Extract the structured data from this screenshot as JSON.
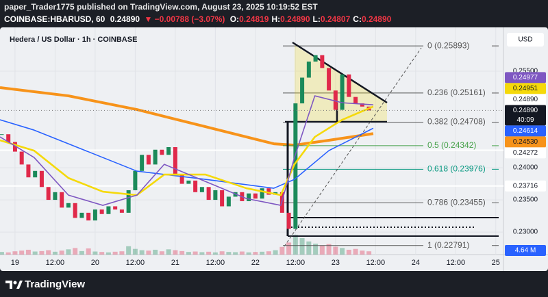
{
  "header": {
    "line1": "paper_Trader1775 published on TradingView.com, August 23, 2025 10:19:52 EST",
    "symbol": "COINBASE:HBARUSD, 60",
    "last": "0.24890",
    "change": "▼ −0.00788 (−3.07%)",
    "ohlc": [
      {
        "label": "O:",
        "value": "0.24819"
      },
      {
        "label": "H:",
        "value": "0.24890"
      },
      {
        "label": "L:",
        "value": "0.24807"
      },
      {
        "label": "C:",
        "value": "0.24890"
      }
    ]
  },
  "footer": {
    "brand": "TradingView"
  },
  "chart_data": {
    "type": "candlestick",
    "title": "Hedera / US Dollar · 1h · COINBASE",
    "currency": "USD",
    "up_color": "#1b8a5a",
    "down_color": "#e0294a",
    "grid": true,
    "x": [
      -4,
      -2,
      0,
      2,
      4,
      6,
      8,
      10,
      12,
      14,
      16,
      18,
      20,
      22,
      24,
      26,
      28,
      30,
      32,
      34,
      36,
      38,
      40,
      42,
      44,
      46,
      48,
      50,
      52,
      54,
      56,
      58,
      60,
      62,
      64,
      66,
      68,
      70,
      72,
      74,
      76,
      78,
      80,
      82,
      84,
      86,
      88,
      90,
      92,
      94,
      96,
      98,
      100,
      102,
      104,
      106
    ],
    "values": [
      0.2452,
      0.244,
      0.2425,
      0.2405,
      0.2385,
      0.2395,
      0.237,
      0.235,
      0.2362,
      0.2338,
      0.2345,
      0.2322,
      0.233,
      0.2318,
      0.2335,
      0.2328,
      0.234,
      0.2335,
      0.233,
      0.2365,
      0.2395,
      0.242,
      0.2405,
      0.2428,
      0.242,
      0.2432,
      0.239,
      0.2375,
      0.238,
      0.2362,
      0.237,
      0.235,
      0.2365,
      0.234,
      0.2355,
      0.2362,
      0.2348,
      0.236,
      0.2352,
      0.2368,
      0.2358,
      0.2362,
      0.233,
      0.2305,
      0.25,
      0.254,
      0.2565,
      0.2575,
      0.2555,
      0.252,
      0.249,
      0.2545,
      0.251,
      0.25,
      0.2495,
      0.2489
    ],
    "xlim": [
      -4.5,
      146.3
    ],
    "xticks": [
      {
        "value": 0,
        "label": "19"
      },
      {
        "value": 12,
        "label": "12:00"
      },
      {
        "value": 24,
        "label": "20"
      },
      {
        "value": 36,
        "label": "12:00"
      },
      {
        "value": 48,
        "label": "21"
      },
      {
        "value": 60,
        "label": "12:00"
      },
      {
        "value": 72,
        "label": "22"
      },
      {
        "value": 84,
        "label": "12:00"
      },
      {
        "value": 96,
        "label": "23"
      },
      {
        "value": 108,
        "label": "12:00"
      },
      {
        "value": 120,
        "label": "24"
      },
      {
        "value": 132,
        "label": "12:00"
      },
      {
        "value": 144,
        "label": "25"
      }
    ],
    "ylim": [
      0.2265,
      0.2616
    ],
    "yticks": [
      {
        "value": 0.23,
        "label": "0.23000"
      },
      {
        "value": 0.235,
        "label": "0.23500"
      },
      {
        "value": 0.24,
        "label": "0.24000"
      },
      {
        "value": 0.255,
        "label": "0.25500"
      }
    ],
    "moving_averages": [
      {
        "color": "#f7931a",
        "width": 4,
        "x": [
          -4.5,
          16,
          36.5,
          57,
          77.5,
          83.7,
          94,
          107.3
        ],
        "values": [
          0.25245,
          0.25117,
          0.24904,
          0.24638,
          0.24372,
          0.24351,
          0.24426,
          0.2453
        ]
      },
      {
        "color": "#2962ff",
        "width": 1.6,
        "x": [
          -4.5,
          5.7,
          16,
          36.5,
          57,
          77.5,
          83.7,
          94,
          107.3
        ],
        "values": [
          0.24745,
          0.24585,
          0.24372,
          0.23947,
          0.23819,
          0.23681,
          0.23819,
          0.24266,
          0.24614
        ]
      },
      {
        "color": "#f5d90a",
        "width": 2.6,
        "x": [
          -4.5,
          5.7,
          16,
          26.3,
          36.5,
          44.7,
          57,
          69.3,
          79.6,
          83.7,
          89.8,
          98,
          107.3
        ],
        "values": [
          0.24426,
          0.24266,
          0.2384,
          0.23628,
          0.23574,
          0.23894,
          0.23894,
          0.23681,
          0.23574,
          0.24053,
          0.24479,
          0.24745,
          0.24951
        ]
      },
      {
        "color": "#7e57c2",
        "width": 1.6,
        "x": [
          -4.5,
          5.7,
          16,
          26.3,
          36.5,
          44.7,
          57,
          69.3,
          79.6,
          83.7,
          89.8,
          98,
          107.3
        ],
        "values": [
          0.24479,
          0.2416,
          0.23574,
          0.23415,
          0.23574,
          0.24053,
          0.23787,
          0.23521,
          0.23415,
          0.2416,
          0.25117,
          0.2501,
          0.24977
        ]
      }
    ],
    "fib_levels": [
      {
        "value": 0.25893,
        "label": "0 (0.25893)",
        "color": "#555555"
      },
      {
        "value": 0.25161,
        "label": "0.236 (0.25161)",
        "color": "#555555"
      },
      {
        "value": 0.24708,
        "label": "0.382 (0.24708)",
        "color": "#555555"
      },
      {
        "value": 0.24342,
        "label": "0.5 (0.24342)",
        "color": "#43a047"
      },
      {
        "value": 0.23976,
        "label": "0.618 (0.23976)",
        "color": "#089981"
      },
      {
        "value": 0.23455,
        "label": "0.786 (0.23455)",
        "color": "#555555"
      },
      {
        "value": 0.22791,
        "label": "1 (0.22791)",
        "color": "#555555"
      }
    ],
    "last_price": {
      "value": 0.2489,
      "label": "0.24890",
      "countdown": "40:09"
    },
    "price_labels": [
      {
        "value": 0.24977,
        "label": "0.24977",
        "bg": "#7e57c2",
        "fg": "#ffffff",
        "line": false
      },
      {
        "value": 0.24951,
        "label": "0.24951",
        "bg": "#f5d90a",
        "fg": "#131722",
        "line": false
      },
      {
        "value": 0.2489,
        "label": "0.24890",
        "bg": "#ffffff",
        "fg": "#131722",
        "line": false
      },
      {
        "value": 0.24614,
        "label": "0.24614",
        "bg": "#2962ff",
        "fg": "#ffffff",
        "line": false
      },
      {
        "value": 0.2453,
        "label": "0.24530",
        "bg": "#f7931a",
        "fg": "#131722",
        "line": false
      },
      {
        "value": 0.24272,
        "label": "0.24272",
        "bg": "#ffffff",
        "fg": "#131722",
        "line": true
      },
      {
        "value": 0.23716,
        "label": "0.23716",
        "bg": "#ffffff",
        "fg": "#131722",
        "line": true
      }
    ],
    "volume": {
      "ylim": [
        0,
        25
      ],
      "label": "4.64 M",
      "label_color": "#2962ff",
      "values": [
        1.2,
        1.0,
        1.5,
        1.8,
        2.2,
        1.4,
        1.6,
        2.0,
        1.3,
        1.8,
        2.4,
        3.0,
        1.6,
        2.8,
        1.4,
        1.2,
        1.0,
        1.3,
        1.5,
        3.8,
        2.6,
        2.0,
        1.8,
        2.2,
        1.5,
        2.4,
        2.0,
        1.6,
        1.2,
        1.4,
        1.1,
        1.3,
        1.0,
        1.5,
        1.2,
        1.1,
        1.4,
        1.0,
        1.2,
        1.3,
        1.5,
        2.0,
        3.5,
        5.5,
        9.0,
        7.5,
        6.0,
        5.0,
        4.2,
        4.8,
        3.6,
        3.0,
        2.2,
        2.6,
        1.8,
        1.5
      ]
    }
  }
}
